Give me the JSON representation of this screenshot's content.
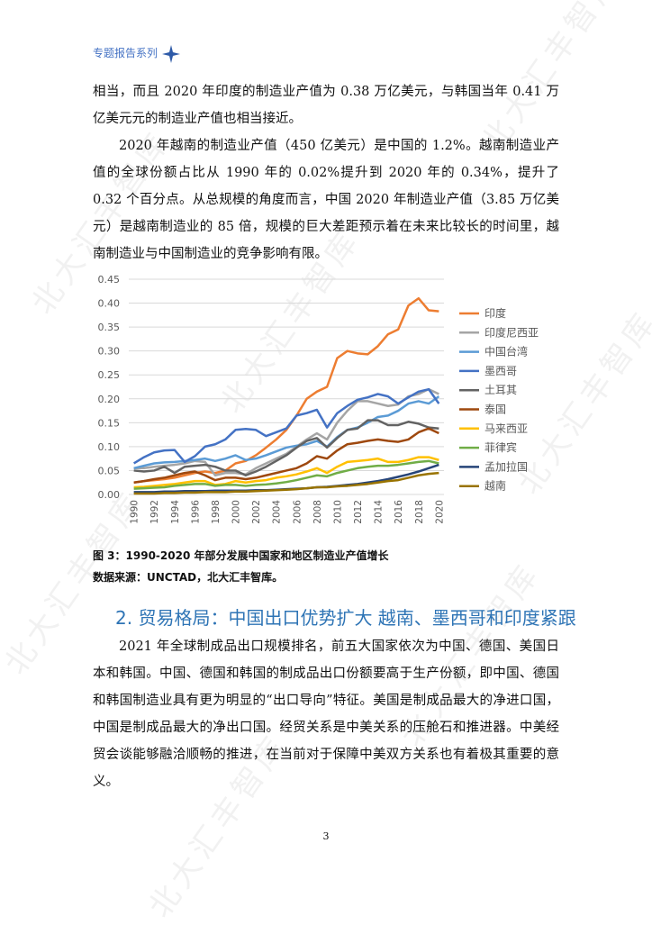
{
  "header": {
    "title": "专题报告系列"
  },
  "watermark": "北大汇丰智库",
  "paragraphs": [
    "相当，而且 2020 年印度的制造业产值为 0.38 万亿美元，与韩国当年 0.41 万亿美元元的制造业产值也相当接近。",
    "2020 年越南的制造业产值（450 亿美元）是中国的 1.2%。越南制造业产值的全球份额占比从 1990 年的 0.02%提升到 2020 年的 0.34%，提升了 0.32 个百分点。从总规模的角度而言，中国 2020 年制造业产值（3.85 万亿美元）是越南制造业的 85 倍，规模的巨大差距预示着在未来比较长的时间里，越南制造业与中国制造业的竞争影响有限。"
  ],
  "chart_data": {
    "type": "line",
    "categories": [
      "1990",
      null,
      "1992",
      null,
      "1994",
      null,
      "1996",
      null,
      "1998",
      null,
      "2000",
      null,
      "2002",
      null,
      "2004",
      null,
      "2006",
      null,
      "2008",
      null,
      "2010",
      null,
      "2012",
      null,
      "2014",
      null,
      "2016",
      null,
      "2018",
      null,
      "2020"
    ],
    "ylim": [
      0,
      0.45
    ],
    "yticks": [
      {
        "value": 0,
        "label": "0.00"
      },
      {
        "value": 0.05,
        "label": "0.05"
      },
      {
        "value": 0.1,
        "label": "0.10"
      },
      {
        "value": 0.15,
        "label": "0.15"
      },
      {
        "value": 0.2,
        "label": "0.20"
      },
      {
        "value": 0.25,
        "label": "0.25"
      },
      {
        "value": 0.3,
        "label": "0.30"
      },
      {
        "value": 0.35,
        "label": "0.35"
      },
      {
        "value": 0.4,
        "label": "0.40"
      },
      {
        "value": 0.45,
        "label": "0.45"
      }
    ],
    "grid": true,
    "legend": "right",
    "series": [
      {
        "name": "印度",
        "color": "#ed7d31",
        "values": [
          0.025,
          0.028,
          0.03,
          0.032,
          0.035,
          0.04,
          0.045,
          0.048,
          0.045,
          0.05,
          0.065,
          0.07,
          0.082,
          0.098,
          0.115,
          0.135,
          0.165,
          0.2,
          0.215,
          0.225,
          0.285,
          0.3,
          0.295,
          0.293,
          0.31,
          0.335,
          0.345,
          0.395,
          0.41,
          0.385,
          0.383
        ]
      },
      {
        "name": "印度尼西亚",
        "color": "#a5a5a5",
        "values": [
          0.055,
          0.055,
          0.058,
          0.06,
          0.062,
          0.065,
          0.07,
          0.068,
          0.04,
          0.045,
          0.045,
          0.042,
          0.055,
          0.065,
          0.075,
          0.085,
          0.1,
          0.115,
          0.128,
          0.115,
          0.15,
          0.175,
          0.195,
          0.195,
          0.19,
          0.185,
          0.188,
          0.205,
          0.21,
          0.22,
          0.21
        ]
      },
      {
        "name": "中国台湾",
        "color": "#5b9bd5",
        "values": [
          0.055,
          0.06,
          0.065,
          0.067,
          0.068,
          0.07,
          0.072,
          0.075,
          0.07,
          0.075,
          0.082,
          0.072,
          0.075,
          0.082,
          0.09,
          0.098,
          0.102,
          0.105,
          0.112,
          0.1,
          0.12,
          0.135,
          0.14,
          0.15,
          0.162,
          0.165,
          0.175,
          0.19,
          0.195,
          0.19,
          0.205
        ]
      },
      {
        "name": "墨西哥",
        "color": "#4472c4",
        "values": [
          0.065,
          0.078,
          0.088,
          0.092,
          0.093,
          0.068,
          0.08,
          0.1,
          0.105,
          0.115,
          0.135,
          0.137,
          0.135,
          0.122,
          0.13,
          0.138,
          0.165,
          0.17,
          0.177,
          0.14,
          0.17,
          0.185,
          0.198,
          0.203,
          0.21,
          0.205,
          0.19,
          0.203,
          0.215,
          0.22,
          0.19
        ]
      },
      {
        "name": "土耳其",
        "color": "#636363",
        "values": [
          0.05,
          0.048,
          0.05,
          0.058,
          0.045,
          0.058,
          0.06,
          0.062,
          0.058,
          0.05,
          0.05,
          0.04,
          0.048,
          0.058,
          0.07,
          0.082,
          0.098,
          0.112,
          0.118,
          0.098,
          0.118,
          0.135,
          0.138,
          0.155,
          0.155,
          0.145,
          0.145,
          0.152,
          0.148,
          0.14,
          0.138
        ]
      },
      {
        "name": "泰国",
        "color": "#9e480e",
        "values": [
          0.025,
          0.028,
          0.032,
          0.035,
          0.04,
          0.045,
          0.048,
          0.04,
          0.03,
          0.035,
          0.035,
          0.032,
          0.035,
          0.04,
          0.045,
          0.05,
          0.055,
          0.065,
          0.08,
          0.075,
          0.092,
          0.105,
          0.108,
          0.112,
          0.115,
          0.112,
          0.11,
          0.115,
          0.13,
          0.138,
          0.128
        ]
      },
      {
        "name": "马来西亚",
        "color": "#ffc000",
        "values": [
          0.015,
          0.016,
          0.018,
          0.02,
          0.022,
          0.025,
          0.028,
          0.028,
          0.02,
          0.022,
          0.028,
          0.025,
          0.028,
          0.03,
          0.035,
          0.038,
          0.042,
          0.048,
          0.055,
          0.045,
          0.058,
          0.068,
          0.07,
          0.072,
          0.075,
          0.068,
          0.068,
          0.072,
          0.078,
          0.078,
          0.072
        ]
      },
      {
        "name": "菲律宾",
        "color": "#70ad47",
        "values": [
          0.012,
          0.013,
          0.014,
          0.015,
          0.018,
          0.02,
          0.022,
          0.022,
          0.018,
          0.02,
          0.02,
          0.018,
          0.02,
          0.021,
          0.023,
          0.026,
          0.03,
          0.035,
          0.04,
          0.038,
          0.045,
          0.05,
          0.055,
          0.058,
          0.06,
          0.06,
          0.062,
          0.065,
          0.068,
          0.07,
          0.065
        ]
      },
      {
        "name": "孟加拉国",
        "color": "#264478",
        "values": [
          0.005,
          0.005,
          0.005,
          0.006,
          0.006,
          0.007,
          0.007,
          0.007,
          0.008,
          0.008,
          0.008,
          0.008,
          0.009,
          0.009,
          0.01,
          0.011,
          0.012,
          0.013,
          0.015,
          0.016,
          0.018,
          0.02,
          0.022,
          0.025,
          0.028,
          0.032,
          0.037,
          0.042,
          0.048,
          0.055,
          0.062
        ]
      },
      {
        "name": "越南",
        "color": "#997300",
        "values": [
          0.002,
          0.002,
          0.002,
          0.003,
          0.003,
          0.004,
          0.004,
          0.005,
          0.005,
          0.005,
          0.006,
          0.006,
          0.007,
          0.008,
          0.009,
          0.01,
          0.011,
          0.013,
          0.015,
          0.015,
          0.017,
          0.018,
          0.02,
          0.022,
          0.025,
          0.028,
          0.03,
          0.035,
          0.04,
          0.043,
          0.045
        ]
      }
    ]
  },
  "figure": {
    "caption": "图 3：1990-2020 年部分发展中国家和地区制造业产值增长",
    "source": "数据来源：UNCTAD，北大汇丰智库。"
  },
  "section": {
    "heading": "2. 贸易格局：中国出口优势扩大 越南、墨西哥和印度紧跟",
    "paragraph": "2021 年全球制成品出口规模排名，前五大国家依次为中国、德国、美国日本和韩国。中国、德国和韩国的制成品出口份额要高于生产份额，即中国、德国和韩国制造业具有更为明显的“出口导向”特征。美国是制成品最大的净进口国，中国是制成品最大的净出口国。经贸关系是中美关系的压舱石和推进器。中美经贸会谈能够融洽顺畅的推进，在当前对于保障中美双方关系也有着极其重要的意义。"
  },
  "page_number": "3"
}
